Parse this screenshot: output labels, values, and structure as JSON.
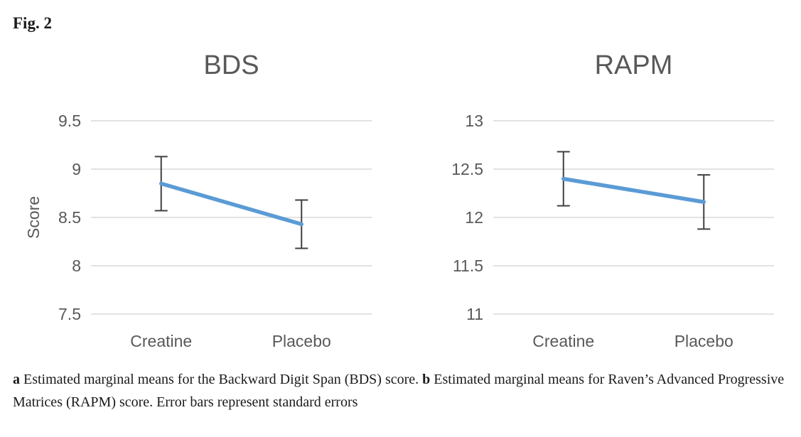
{
  "figure_label": "Fig. 2",
  "colors": {
    "line": "#5B9BD5",
    "error_bar": "#404040",
    "gridline": "#D9D9D9",
    "chart_text": "#595959"
  },
  "chart_data": [
    {
      "type": "line",
      "title": "BDS",
      "ylabel": "Score",
      "xlabel": "",
      "categories": [
        "Creatine",
        "Placebo"
      ],
      "series": [
        {
          "values": [
            8.85,
            8.43
          ],
          "errors": [
            0.28,
            0.25
          ]
        }
      ],
      "ylim": [
        7.5,
        9.5
      ],
      "ytick_labels": [
        "9.5",
        "9",
        "8.5",
        "8",
        "7.5"
      ],
      "grid": true,
      "legend": false
    },
    {
      "type": "line",
      "title": "RAPM",
      "ylabel": "",
      "xlabel": "",
      "categories": [
        "Creatine",
        "Placebo"
      ],
      "series": [
        {
          "values": [
            12.4,
            12.16
          ],
          "errors": [
            0.28,
            0.28
          ]
        }
      ],
      "ylim": [
        11,
        13
      ],
      "ytick_labels": [
        "13",
        "12.5",
        "12",
        "11.5",
        "11"
      ],
      "grid": true,
      "legend": false
    }
  ],
  "caption": {
    "part_a_label": "a",
    "part_a_text": " Estimated marginal means for the Backward Digit Span (BDS) score. ",
    "part_b_label": "b",
    "part_b_text": " Estimated marginal means for Raven’s Advanced Progressive Matrices (RAPM) score. Error bars represent standard errors"
  }
}
